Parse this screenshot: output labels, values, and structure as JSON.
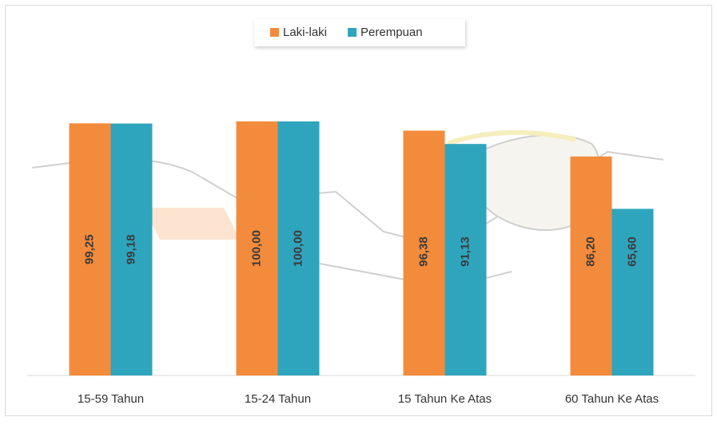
{
  "chart_data": {
    "type": "bar",
    "categories": [
      "15-59 Tahun",
      "15-24 Tahun",
      "15 Tahun Ke Atas",
      "60 Tahun Ke Atas"
    ],
    "series": [
      {
        "name": "Laki-laki",
        "color": "#f38b3c",
        "values": [
          99.25,
          100,
          96.38,
          86.2
        ],
        "value_labels": [
          "99,25",
          "100,00",
          "96,38",
          "86,20"
        ]
      },
      {
        "name": "Perempuan",
        "color": "#2fa5bd",
        "values": [
          99.18,
          100,
          91.13,
          65.6
        ],
        "value_labels": [
          "99,18",
          "100,00",
          "91,13",
          "65,60"
        ]
      }
    ],
    "ylim": [
      0,
      100
    ],
    "legend": "top"
  }
}
